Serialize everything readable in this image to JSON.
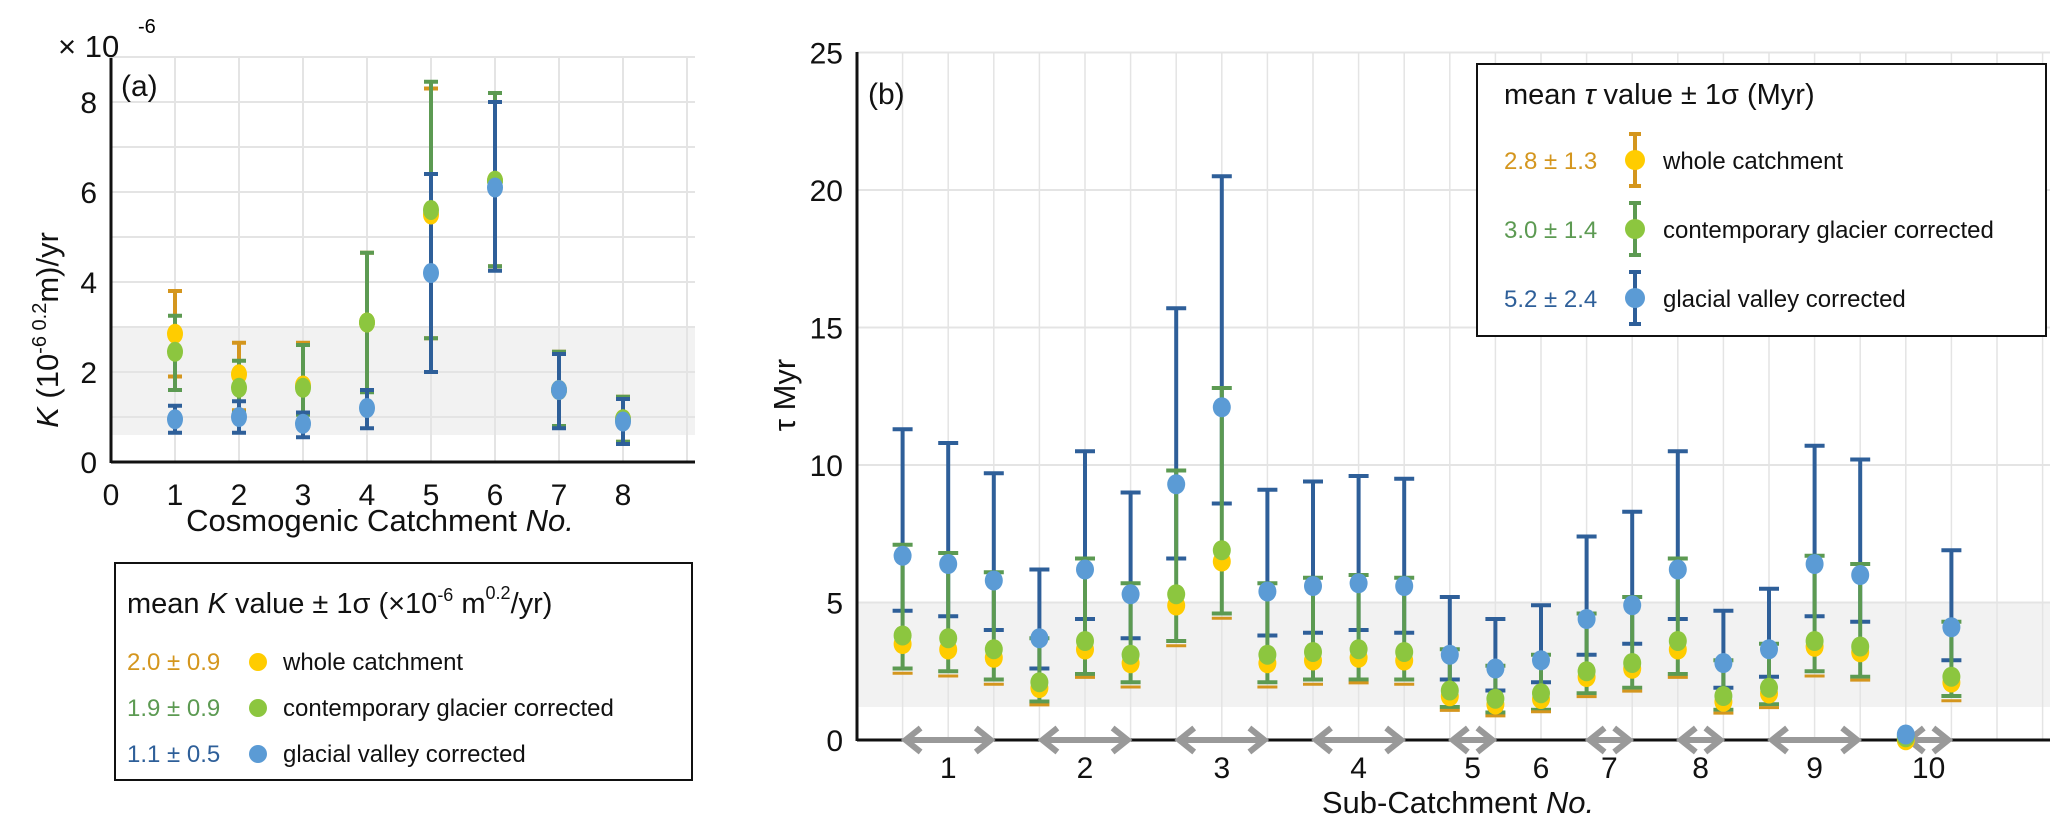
{
  "colors": {
    "whole_marker": "#FFCC00",
    "whole_bar": "#D4961E",
    "glacier_marker": "#8CC63F",
    "glacier_bar": "#5C9A52",
    "valley_marker": "#5B9BD5",
    "valley_bar": "#2E5F99",
    "band": "#F2F2F2",
    "grid": "#E4E4E4",
    "arrow": "#999999"
  },
  "chart_data": [
    {
      "id": "a",
      "type": "scatter",
      "panel_label": "(a)",
      "title": "",
      "xlabel": "Cosmogenic Catchment",
      "xlabel_italic": "No.",
      "ylabel_prefix": "K",
      "ylabel_rest": " (10",
      "ylabel_sup": "-6 0.2",
      "ylabel_tail": "m)/yr",
      "y_multiplier": "× 10",
      "y_multiplier_exp": "-6",
      "xlim": [
        0,
        9
      ],
      "ylim": [
        0,
        9
      ],
      "xticks": [
        "0",
        "1",
        "2",
        "3",
        "4",
        "5",
        "6",
        "7",
        "8"
      ],
      "yticks": [
        "0",
        "2",
        "4",
        "6",
        "8"
      ],
      "grid": true,
      "shaded_band": [
        0.6,
        3.0
      ],
      "legend": {
        "placement": "below",
        "title_prefix": "mean ",
        "title_italic": "K",
        "title_mid": " value ± 1σ (×10",
        "title_sup1": "-6",
        "title_mid2": " m",
        "title_sup2": "0.2",
        "title_tail": "/yr)",
        "items": [
          {
            "value": "2.0 ± 0.9",
            "label": "whole catchment",
            "series": "whole"
          },
          {
            "value": "1.9 ± 0.9",
            "label": "contemporary glacier corrected",
            "series": "glacier"
          },
          {
            "value": "1.1 ± 0.5",
            "label": "glacial valley corrected",
            "series": "valley"
          }
        ]
      },
      "series": [
        {
          "name": "whole catchment",
          "key": "whole",
          "x": [
            1,
            2,
            3,
            4,
            5,
            6,
            7,
            8
          ],
          "y": [
            2.85,
            1.95,
            1.7,
            3.1,
            5.5,
            6.25,
            1.6,
            0.95
          ],
          "lo": [
            1.9,
            1.15,
            1.1,
            1.6,
            2.75,
            4.35,
            0.8,
            0.45
          ],
          "hi": [
            3.8,
            2.65,
            2.65,
            4.65,
            8.3,
            8.2,
            2.45,
            1.45
          ]
        },
        {
          "name": "contemporary glacier corrected",
          "key": "glacier",
          "x": [
            1,
            2,
            3,
            4,
            5,
            6,
            7,
            8
          ],
          "y": [
            2.45,
            1.65,
            1.65,
            3.1,
            5.6,
            6.25,
            1.6,
            0.95
          ],
          "lo": [
            1.6,
            1.1,
            1.05,
            1.55,
            2.75,
            4.35,
            0.8,
            0.45
          ],
          "hi": [
            3.25,
            2.25,
            2.6,
            4.65,
            8.45,
            8.2,
            2.45,
            1.45
          ]
        },
        {
          "name": "glacial valley corrected",
          "key": "valley",
          "x": [
            1,
            2,
            3,
            4,
            5,
            6,
            7,
            8
          ],
          "y": [
            0.95,
            1.0,
            0.85,
            1.2,
            4.2,
            6.1,
            1.6,
            0.9
          ],
          "lo": [
            0.65,
            0.65,
            0.55,
            0.75,
            2.0,
            4.25,
            0.75,
            0.4
          ],
          "hi": [
            1.25,
            1.35,
            1.1,
            1.6,
            6.4,
            8.0,
            2.4,
            1.4
          ]
        }
      ]
    },
    {
      "id": "b",
      "type": "scatter",
      "panel_label": "(b)",
      "title": "",
      "xlabel": "Sub-Catchment",
      "xlabel_italic": "No.",
      "ylabel": "τ Myr",
      "xlim": [
        0,
        26
      ],
      "ylim": [
        0,
        25
      ],
      "yticks": [
        "0",
        "5",
        "10",
        "15",
        "20",
        "25"
      ],
      "grid": true,
      "shaded_band": [
        1.2,
        5.0
      ],
      "groups": [
        {
          "label": "1",
          "from": 1,
          "to": 3
        },
        {
          "label": "2",
          "from": 4,
          "to": 6
        },
        {
          "label": "3",
          "from": 7,
          "to": 9
        },
        {
          "label": "4",
          "from": 10,
          "to": 12
        },
        {
          "label": "5",
          "from": 13,
          "to": 14
        },
        {
          "label": "6",
          "from": 15,
          "to": 15
        },
        {
          "label": "7",
          "from": 16,
          "to": 17
        },
        {
          "label": "8",
          "from": 18,
          "to": 19
        },
        {
          "label": "9",
          "from": 20,
          "to": 22
        },
        {
          "label": "10",
          "from": 23,
          "to": 24
        }
      ],
      "legend": {
        "placement": "top-right",
        "title_prefix": "mean ",
        "title_italic": "τ",
        "title_tail": " value ± 1σ (Myr)",
        "items": [
          {
            "value": "2.8 ± 1.3",
            "label": "whole catchment",
            "series": "whole"
          },
          {
            "value": "3.0 ± 1.4",
            "label": "contemporary glacier corrected",
            "series": "glacier"
          },
          {
            "value": "5.2 ± 2.4",
            "label": "glacial valley corrected",
            "series": "valley"
          }
        ]
      },
      "x": [
        1,
        2,
        3,
        4,
        5,
        6,
        7,
        8,
        9,
        10,
        11,
        12,
        13,
        14,
        15,
        16,
        17,
        18,
        19,
        20,
        21,
        22,
        23,
        24
      ],
      "series": [
        {
          "name": "whole catchment",
          "key": "whole",
          "y": [
            3.6,
            3.4,
            3.1,
            2.0,
            3.4,
            2.9,
            5.0,
            6.6,
            2.9,
            3.0,
            3.1,
            3.0,
            1.7,
            1.4,
            1.6,
            2.4,
            2.7,
            3.4,
            1.5,
            1.8,
            3.5,
            3.3,
            0.1,
            2.2
          ],
          "lo": [
            2.5,
            2.4,
            2.1,
            1.35,
            2.35,
            2.0,
            3.5,
            4.5,
            2.0,
            2.1,
            2.15,
            2.1,
            1.15,
            0.95,
            1.1,
            1.65,
            1.85,
            2.35,
            1.05,
            1.25,
            2.4,
            2.25,
            null,
            1.5
          ],
          "hi": [
            null,
            null,
            null,
            null,
            null,
            null,
            null,
            null,
            null,
            null,
            null,
            null,
            null,
            null,
            null,
            null,
            null,
            null,
            null,
            null,
            null,
            null,
            null,
            null
          ]
        },
        {
          "name": "contemporary glacier corrected",
          "key": "glacier",
          "y": [
            3.8,
            3.7,
            3.3,
            2.1,
            3.6,
            3.1,
            5.3,
            6.9,
            3.1,
            3.2,
            3.3,
            3.2,
            1.8,
            1.5,
            1.7,
            2.5,
            2.8,
            3.6,
            1.6,
            1.9,
            3.6,
            3.4,
            0.1,
            2.3
          ],
          "lo": [
            2.6,
            2.5,
            2.2,
            1.4,
            2.4,
            2.1,
            3.6,
            4.6,
            2.1,
            2.2,
            2.2,
            2.2,
            1.2,
            1.0,
            1.1,
            1.7,
            1.9,
            2.4,
            1.1,
            1.3,
            2.5,
            2.3,
            null,
            1.6
          ],
          "hi": [
            7.1,
            6.8,
            6.1,
            3.7,
            6.6,
            5.7,
            9.8,
            12.8,
            5.7,
            5.9,
            6.0,
            5.9,
            3.3,
            2.7,
            3.1,
            4.6,
            5.2,
            6.6,
            2.9,
            3.5,
            6.7,
            6.4,
            null,
            4.3
          ]
        },
        {
          "name": "glacial valley corrected",
          "key": "valley",
          "y": [
            6.7,
            6.4,
            5.8,
            3.7,
            6.2,
            5.3,
            9.3,
            12.1,
            5.4,
            5.6,
            5.7,
            5.6,
            3.1,
            2.6,
            2.9,
            4.4,
            4.9,
            6.2,
            2.8,
            3.3,
            6.4,
            6.0,
            0.2,
            4.1
          ],
          "lo": [
            4.7,
            4.5,
            4.0,
            2.6,
            4.4,
            3.7,
            6.6,
            8.6,
            3.8,
            3.9,
            4.0,
            3.9,
            2.2,
            1.8,
            2.1,
            3.1,
            3.5,
            4.4,
            1.9,
            2.3,
            4.5,
            4.3,
            null,
            2.9
          ],
          "hi": [
            11.3,
            10.8,
            9.7,
            6.2,
            10.5,
            9.0,
            15.7,
            20.5,
            9.1,
            9.4,
            9.6,
            9.5,
            5.2,
            4.4,
            4.9,
            7.4,
            8.3,
            10.5,
            4.7,
            5.5,
            10.7,
            10.2,
            null,
            6.9
          ]
        }
      ]
    }
  ]
}
